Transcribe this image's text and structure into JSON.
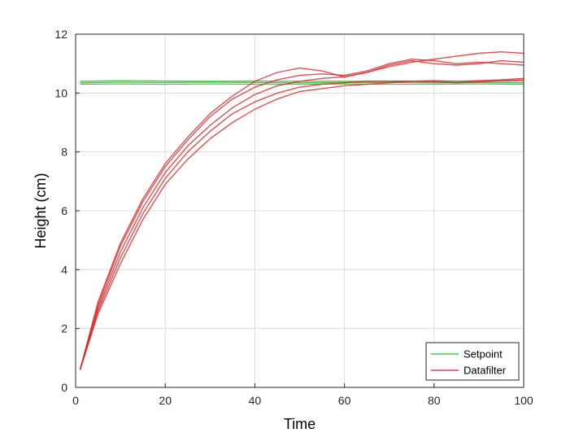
{
  "chart_data": {
    "type": "line",
    "xlabel": "Time",
    "ylabel": "Height   (cm)",
    "xlim": [
      0,
      100
    ],
    "ylim": [
      0,
      12
    ],
    "xticks": [
      0,
      20,
      40,
      60,
      80,
      100
    ],
    "yticks": [
      0,
      2,
      4,
      6,
      8,
      10,
      12
    ],
    "grid": true,
    "legend_position": "bottom-right",
    "legend": [
      {
        "label": "Setpoint",
        "color": "#22cc22"
      },
      {
        "label": "Datafilter",
        "color": "#d62728"
      }
    ],
    "series": [
      {
        "group": "setpoint",
        "color": "#22cc22",
        "x": [
          1,
          10,
          20,
          30,
          40,
          50,
          60,
          70,
          80,
          90,
          100
        ],
        "y": [
          10.3,
          10.31,
          10.3,
          10.31,
          10.3,
          10.3,
          10.31,
          10.3,
          10.3,
          10.31,
          10.3
        ]
      },
      {
        "group": "setpoint",
        "color": "#22cc22",
        "x": [
          1,
          10,
          20,
          30,
          40,
          50,
          60,
          70,
          80,
          90,
          100
        ],
        "y": [
          10.35,
          10.37,
          10.36,
          10.37,
          10.36,
          10.35,
          10.36,
          10.36,
          10.35,
          10.36,
          10.35
        ]
      },
      {
        "group": "setpoint",
        "color": "#22cc22",
        "x": [
          1,
          10,
          20,
          30,
          40,
          50,
          60,
          70,
          80,
          90,
          100
        ],
        "y": [
          10.4,
          10.42,
          10.41,
          10.4,
          10.41,
          10.4,
          10.4,
          10.41,
          10.4,
          10.4,
          10.41
        ]
      },
      {
        "group": "datafilter",
        "color": "#d62728",
        "x": [
          1,
          5,
          10,
          15,
          20,
          25,
          30,
          35,
          40,
          45,
          50,
          55,
          60,
          65,
          70,
          75,
          80,
          85,
          90,
          95,
          100
        ],
        "y": [
          0.6,
          2.9,
          4.9,
          6.4,
          7.6,
          8.5,
          9.3,
          9.9,
          10.4,
          10.7,
          10.85,
          10.75,
          10.55,
          10.7,
          10.95,
          11.1,
          11.0,
          10.95,
          11.0,
          11.1,
          11.05
        ]
      },
      {
        "group": "datafilter",
        "color": "#d62728",
        "x": [
          1,
          5,
          10,
          15,
          20,
          25,
          30,
          35,
          40,
          45,
          50,
          55,
          60,
          65,
          70,
          75,
          80,
          85,
          90,
          95,
          100
        ],
        "y": [
          0.6,
          2.8,
          4.8,
          6.3,
          7.5,
          8.4,
          9.2,
          9.8,
          10.2,
          10.45,
          10.6,
          10.65,
          10.6,
          10.75,
          11.0,
          11.15,
          11.1,
          11.0,
          11.05,
          11.0,
          10.95
        ]
      },
      {
        "group": "datafilter",
        "color": "#d62728",
        "x": [
          1,
          5,
          10,
          15,
          20,
          25,
          30,
          35,
          40,
          45,
          50,
          55,
          60,
          65,
          70,
          75,
          80,
          85,
          90,
          95,
          100
        ],
        "y": [
          0.6,
          2.7,
          4.6,
          6.1,
          7.3,
          8.2,
          8.9,
          9.5,
          9.95,
          10.25,
          10.4,
          10.5,
          10.55,
          10.7,
          10.9,
          11.05,
          11.15,
          11.25,
          11.35,
          11.4,
          11.35
        ]
      },
      {
        "group": "datafilter",
        "color": "#d62728",
        "x": [
          1,
          5,
          10,
          15,
          20,
          25,
          30,
          35,
          40,
          45,
          50,
          55,
          60,
          65,
          70,
          75,
          80,
          85,
          90,
          95,
          100
        ],
        "y": [
          0.6,
          2.6,
          4.4,
          5.9,
          7.1,
          8.0,
          8.7,
          9.3,
          9.7,
          10.0,
          10.2,
          10.3,
          10.35,
          10.4,
          10.4,
          10.4,
          10.42,
          10.4,
          10.42,
          10.45,
          10.5
        ]
      },
      {
        "group": "datafilter",
        "color": "#d62728",
        "x": [
          1,
          5,
          10,
          15,
          20,
          25,
          30,
          35,
          40,
          45,
          50,
          55,
          60,
          65,
          70,
          75,
          80,
          85,
          90,
          95,
          100
        ],
        "y": [
          0.6,
          2.5,
          4.2,
          5.7,
          6.9,
          7.75,
          8.45,
          9.0,
          9.45,
          9.8,
          10.05,
          10.15,
          10.25,
          10.3,
          10.35,
          10.4,
          10.38,
          10.35,
          10.38,
          10.42,
          10.45
        ]
      }
    ]
  }
}
